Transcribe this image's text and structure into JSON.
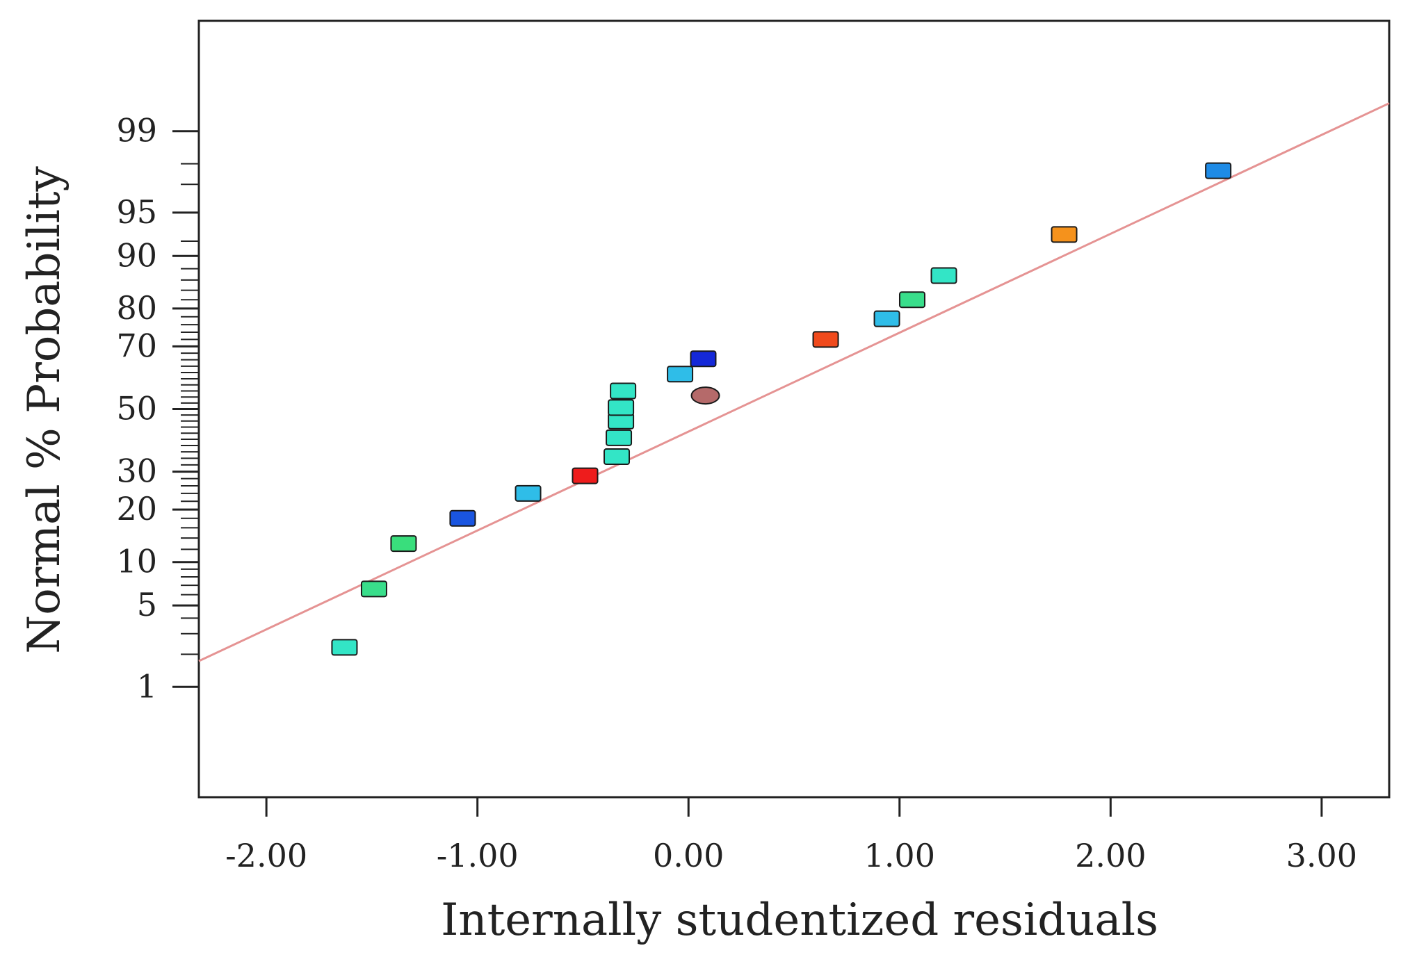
{
  "chart_data": {
    "type": "scatter",
    "title": "",
    "xlabel": "Internally studentized residuals",
    "ylabel": "Normal % Probability",
    "xlim": [
      -2.32,
      3.32
    ],
    "ylim_probit": [
      -3.25,
      3.25
    ],
    "x_ticks": [
      {
        "value": -2,
        "label": "-2.00"
      },
      {
        "value": -1,
        "label": "-1.00"
      },
      {
        "value": 0,
        "label": "0.00"
      },
      {
        "value": 1,
        "label": "1.00"
      },
      {
        "value": 2,
        "label": "2.00"
      },
      {
        "value": 3,
        "label": "3.00"
      }
    ],
    "y_major_ticks": [
      {
        "value": 1,
        "label": "1"
      },
      {
        "value": 5,
        "label": "5"
      },
      {
        "value": 10,
        "label": "10"
      },
      {
        "value": 20,
        "label": "20"
      },
      {
        "value": 30,
        "label": "30"
      },
      {
        "value": 50,
        "label": "50"
      },
      {
        "value": 70,
        "label": "70"
      },
      {
        "value": 80,
        "label": "80"
      },
      {
        "value": 90,
        "label": "90"
      },
      {
        "value": 95,
        "label": "95"
      },
      {
        "value": 99,
        "label": "99"
      }
    ],
    "y_minor_ticks": [
      2,
      3,
      4,
      6,
      7,
      8,
      9,
      12,
      14,
      16,
      18,
      22,
      24,
      26,
      28,
      32,
      34,
      36,
      38,
      40,
      42,
      44,
      46,
      48,
      52,
      54,
      56,
      58,
      60,
      62,
      64,
      66,
      68,
      72,
      74,
      76,
      78,
      82,
      84,
      86,
      88,
      92,
      97,
      98
    ],
    "reference_line": {
      "x": [
        -2.32,
        3.32
      ],
      "y_probit": [
        -2.11,
        2.56
      ],
      "color": "#e59393"
    },
    "points": [
      {
        "x": -1.63,
        "p": 2.3,
        "color": "#33e5c6",
        "shape": "rect"
      },
      {
        "x": -1.49,
        "p": 6.6,
        "color": "#39de8b",
        "shape": "rect"
      },
      {
        "x": -1.35,
        "p": 13.0,
        "color": "#39de7c",
        "shape": "rect"
      },
      {
        "x": -1.07,
        "p": 18.0,
        "color": "#1a55e0",
        "shape": "rect"
      },
      {
        "x": -0.76,
        "p": 24.0,
        "color": "#2fbde8",
        "shape": "rect"
      },
      {
        "x": -0.49,
        "p": 28.8,
        "color": "#ee1c1c",
        "shape": "rect"
      },
      {
        "x": -0.34,
        "p": 34.5,
        "color": "#33e5c6",
        "shape": "rect"
      },
      {
        "x": -0.33,
        "p": 40.5,
        "color": "#33e5c6",
        "shape": "rect"
      },
      {
        "x": -0.32,
        "p": 46.0,
        "color": "#33e5c6",
        "shape": "rect"
      },
      {
        "x": -0.32,
        "p": 50.5,
        "color": "#33e5c6",
        "shape": "rect"
      },
      {
        "x": -0.31,
        "p": 56.0,
        "color": "#33e5c6",
        "shape": "rect"
      },
      {
        "x": -0.04,
        "p": 61.5,
        "color": "#2fbde8",
        "shape": "rect"
      },
      {
        "x": 0.07,
        "p": 66.3,
        "color": "#1428d8",
        "shape": "rect"
      },
      {
        "x": 0.08,
        "p": 54.5,
        "color": "#b56a6a",
        "shape": "ellipse"
      },
      {
        "x": 0.65,
        "p": 72.0,
        "color": "#f04a1c",
        "shape": "rect"
      },
      {
        "x": 0.94,
        "p": 77.5,
        "color": "#2fbde8",
        "shape": "rect"
      },
      {
        "x": 1.06,
        "p": 82.0,
        "color": "#39de8b",
        "shape": "rect"
      },
      {
        "x": 1.21,
        "p": 86.8,
        "color": "#33e5c6",
        "shape": "rect"
      },
      {
        "x": 1.78,
        "p": 92.8,
        "color": "#f5921c",
        "shape": "rect"
      },
      {
        "x": 2.51,
        "p": 97.7,
        "color": "#1e8be6",
        "shape": "rect"
      }
    ],
    "grid": false,
    "legend": "none"
  },
  "colors": {
    "axis": "#222222",
    "background": "#ffffff",
    "marker_outline": "#1a1a1a"
  }
}
